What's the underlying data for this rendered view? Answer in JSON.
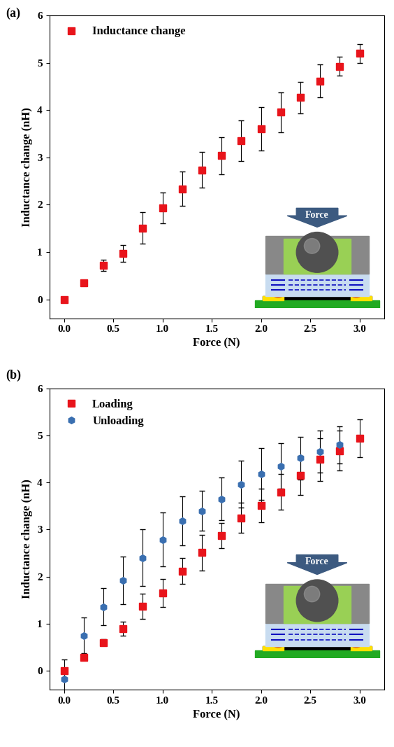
{
  "chart_data": [
    {
      "type": "scatter",
      "panel_label": "(a)",
      "x_label": "Force (N)",
      "y_label": "Inductance change (nH)",
      "xlim": [
        -0.15,
        3.25
      ],
      "ylim": [
        -0.4,
        6
      ],
      "xticks": [
        {
          "value": 0,
          "label": "0.0"
        },
        0.5,
        {
          "value": 1,
          "label": "1.0"
        },
        1.5,
        {
          "value": 2,
          "label": "2.0"
        },
        2.5,
        {
          "value": 3,
          "label": "3.0"
        }
      ],
      "yticks": [
        0,
        1,
        2,
        3,
        4,
        5,
        6
      ],
      "legend": "upper left",
      "grid": false,
      "inset_label": "Force",
      "series": [
        {
          "name": "Inductance change",
          "color": "#e8141b",
          "marker": "square",
          "x": [
            0,
            0.2,
            0.4,
            0.6,
            0.8,
            1.0,
            1.2,
            1.4,
            1.6,
            1.8,
            2.0,
            2.2,
            2.4,
            2.6,
            2.8,
            3.0
          ],
          "values": [
            0,
            0.35,
            0.72,
            0.97,
            1.51,
            1.93,
            2.34,
            2.74,
            3.04,
            3.35,
            3.61,
            3.96,
            4.27,
            4.62,
            4.93,
            5.2
          ],
          "errors": [
            0,
            0.05,
            0.12,
            0.18,
            0.33,
            0.33,
            0.36,
            0.38,
            0.39,
            0.43,
            0.46,
            0.42,
            0.33,
            0.35,
            0.2,
            0.2
          ]
        }
      ]
    },
    {
      "type": "scatter",
      "panel_label": "(b)",
      "x_label": "Force (N)",
      "y_label": "Inductance change (nH)",
      "xlim": [
        -0.15,
        3.25
      ],
      "ylim": [
        -0.4,
        6
      ],
      "xticks": [
        {
          "value": 0,
          "label": "0.0"
        },
        0.5,
        {
          "value": 1,
          "label": "1.0"
        },
        1.5,
        {
          "value": 2,
          "label": "2.0"
        },
        2.5,
        {
          "value": 3,
          "label": "3.0"
        }
      ],
      "yticks": [
        0,
        1,
        2,
        3,
        4,
        5,
        6
      ],
      "legend": "upper left",
      "grid": false,
      "inset_label": "Force",
      "series": [
        {
          "name": "Loading",
          "color": "#e8141b",
          "marker": "square",
          "x": [
            0,
            0.2,
            0.4,
            0.6,
            0.8,
            1.0,
            1.2,
            1.4,
            1.6,
            1.8,
            2.0,
            2.2,
            2.4,
            2.6,
            2.8,
            3.0
          ],
          "values": [
            0,
            0.28,
            0.6,
            0.89,
            1.37,
            1.65,
            2.12,
            2.51,
            2.87,
            3.25,
            3.51,
            3.8,
            4.15,
            4.49,
            4.68,
            4.94
          ],
          "errors": [
            0.05,
            0.05,
            0.07,
            0.15,
            0.27,
            0.3,
            0.28,
            0.38,
            0.27,
            0.32,
            0.36,
            0.38,
            0.42,
            0.45,
            0.42,
            0.4
          ]
        },
        {
          "name": "Unloading",
          "color": "#3a6fb0",
          "marker": "hexagon",
          "x": [
            0,
            0.2,
            0.4,
            0.6,
            0.8,
            1.0,
            1.2,
            1.4,
            1.6,
            1.8,
            2.0,
            2.2,
            2.4,
            2.6,
            2.8
          ],
          "values": [
            -0.18,
            0.75,
            1.36,
            1.92,
            2.4,
            2.79,
            3.18,
            3.4,
            3.65,
            3.96,
            4.18,
            4.35,
            4.52,
            4.66,
            4.8
          ],
          "errors": [
            0.42,
            0.38,
            0.4,
            0.5,
            0.6,
            0.58,
            0.52,
            0.43,
            0.45,
            0.5,
            0.55,
            0.48,
            0.45,
            0.45,
            0.4
          ]
        }
      ]
    }
  ]
}
